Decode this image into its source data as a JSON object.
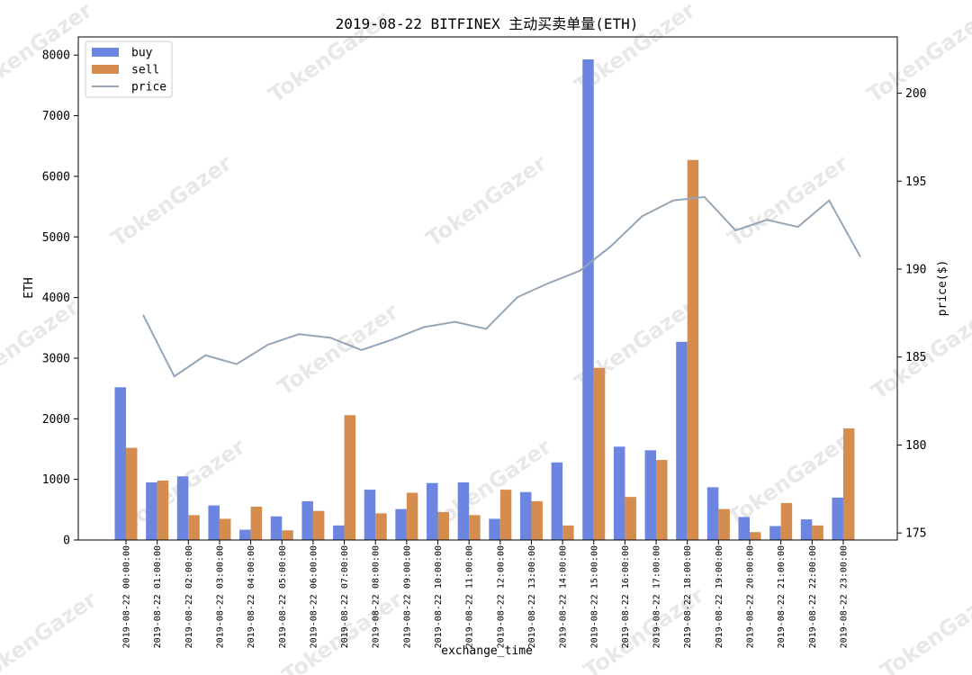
{
  "chart_data": {
    "type": "bar",
    "title": "2019-08-22 BITFINEX 主动买卖单量(ETH)",
    "xlabel": "exchange_time",
    "ylabel": "ETH",
    "y2label": "price($)",
    "ylim": [
      0,
      8300
    ],
    "y2lim": [
      174.6,
      203.2
    ],
    "yticks": [
      "0",
      "1000",
      "2000",
      "3000",
      "4000",
      "5000",
      "6000",
      "7000",
      "8000"
    ],
    "y2ticks": [
      "175",
      "180",
      "185",
      "190",
      "195",
      "200"
    ],
    "categories": [
      "2019-08-22 00:00:00",
      "2019-08-22 01:00:00",
      "2019-08-22 02:00:00",
      "2019-08-22 03:00:00",
      "2019-08-22 04:00:00",
      "2019-08-22 05:00:00",
      "2019-08-22 06:00:00",
      "2019-08-22 07:00:00",
      "2019-08-22 08:00:00",
      "2019-08-22 09:00:00",
      "2019-08-22 10:00:00",
      "2019-08-22 11:00:00",
      "2019-08-22 12:00:00",
      "2019-08-22 13:00:00",
      "2019-08-22 14:00:00",
      "2019-08-22 15:00:00",
      "2019-08-22 16:00:00",
      "2019-08-22 17:00:00",
      "2019-08-22 18:00:00",
      "2019-08-22 19:00:00",
      "2019-08-22 20:00:00",
      "2019-08-22 21:00:00",
      "2019-08-22 22:00:00",
      "2019-08-22 23:00:00"
    ],
    "series": [
      {
        "name": "buy",
        "color": "#6b85e0",
        "values": [
          2520,
          950,
          1050,
          570,
          170,
          390,
          640,
          240,
          830,
          510,
          940,
          950,
          350,
          790,
          1280,
          7930,
          1540,
          1480,
          3270,
          870,
          380,
          230,
          340,
          700
        ]
      },
      {
        "name": "sell",
        "color": "#d48c4f",
        "values": [
          1520,
          980,
          410,
          350,
          550,
          160,
          480,
          2060,
          440,
          780,
          460,
          410,
          830,
          640,
          240,
          2840,
          710,
          1320,
          6270,
          510,
          130,
          610,
          240,
          1840
        ]
      },
      {
        "name": "price",
        "color": "#95a6b8",
        "axis": "right",
        "values": [
          187.4,
          183.9,
          185.1,
          184.6,
          185.7,
          186.3,
          186.1,
          185.4,
          186.0,
          186.7,
          187.0,
          186.6,
          188.4,
          189.2,
          189.9,
          191.3,
          193.0,
          193.9,
          194.1,
          192.2,
          192.8,
          192.4,
          193.9,
          190.7
        ]
      }
    ],
    "legend": "top-left",
    "grid": false
  },
  "watermark": "TokenGazer"
}
